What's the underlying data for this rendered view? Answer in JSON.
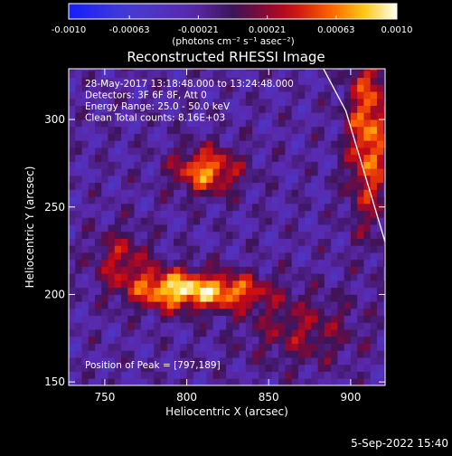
{
  "chart_data": {
    "type": "heatmap",
    "title": "Reconstructed RHESSI Image",
    "xlabel": "Heliocentric X (arcsec)",
    "ylabel": "Heliocentric Y (arcsec)",
    "xlim": [
      728,
      921
    ],
    "ylim": [
      148,
      329
    ],
    "x_ticks": [
      750,
      800,
      850,
      900
    ],
    "y_ticks": [
      150,
      200,
      250,
      300
    ],
    "x_tick_labels": [
      "750",
      "800",
      "850",
      "900"
    ],
    "y_tick_labels": [
      "150",
      "200",
      "250",
      "300"
    ],
    "pixel_size_arcsec": 4,
    "colorbar": {
      "min": -0.001,
      "max": 0.001,
      "tick_values": [
        -0.001,
        -0.00063,
        -0.00021,
        0.00021,
        0.00063,
        0.001
      ],
      "tick_labels": [
        "-0.0010",
        "-0.00063",
        "-0.00021",
        "0.00021",
        "0.00063",
        "0.0010"
      ],
      "units_label": "(photons cm⁻² s⁻¹ asec⁻²)"
    },
    "annotations": [
      "28-May-2017 13:18:48.000 to 13:24:48.000",
      "Detectors: 3F 6F 8F, Att 0",
      "Energy Range: 25.0 - 50.0 keV",
      "Clean     Total counts: 8.16E+03"
    ],
    "peak_label": "Position of Peak = [797,189]",
    "peak_position": [
      797,
      189
    ],
    "sources": [
      {
        "x": 812,
        "y": 271,
        "sx": 14,
        "sy": 9,
        "peak": 0.00088
      },
      {
        "x": 790,
        "y": 203,
        "sx": 17,
        "sy": 8,
        "peak": 0.00098
      },
      {
        "x": 825,
        "y": 202,
        "sx": 18,
        "sy": 7,
        "peak": 0.0008
      },
      {
        "x": 911,
        "y": 292,
        "sx": 9,
        "sy": 35,
        "peak": 0.00085
      },
      {
        "x": 870,
        "y": 180,
        "sx": 24,
        "sy": 14,
        "peak": 0.0004
      },
      {
        "x": 760,
        "y": 220,
        "sx": 12,
        "sy": 12,
        "peak": 0.0005
      }
    ],
    "limb_points": [
      [
        880,
        335
      ],
      [
        897,
        305
      ],
      [
        913,
        255
      ],
      [
        921,
        230
      ]
    ],
    "grid": false
  },
  "footer": {
    "timestamp": "5-Sep-2022 15:40"
  },
  "colors": {
    "background": "#000000",
    "foreground": "#ffffff",
    "colormap_low": "#1a28ff",
    "colormap_mid": "#3a1555",
    "colormap_high": "#ffffff"
  }
}
